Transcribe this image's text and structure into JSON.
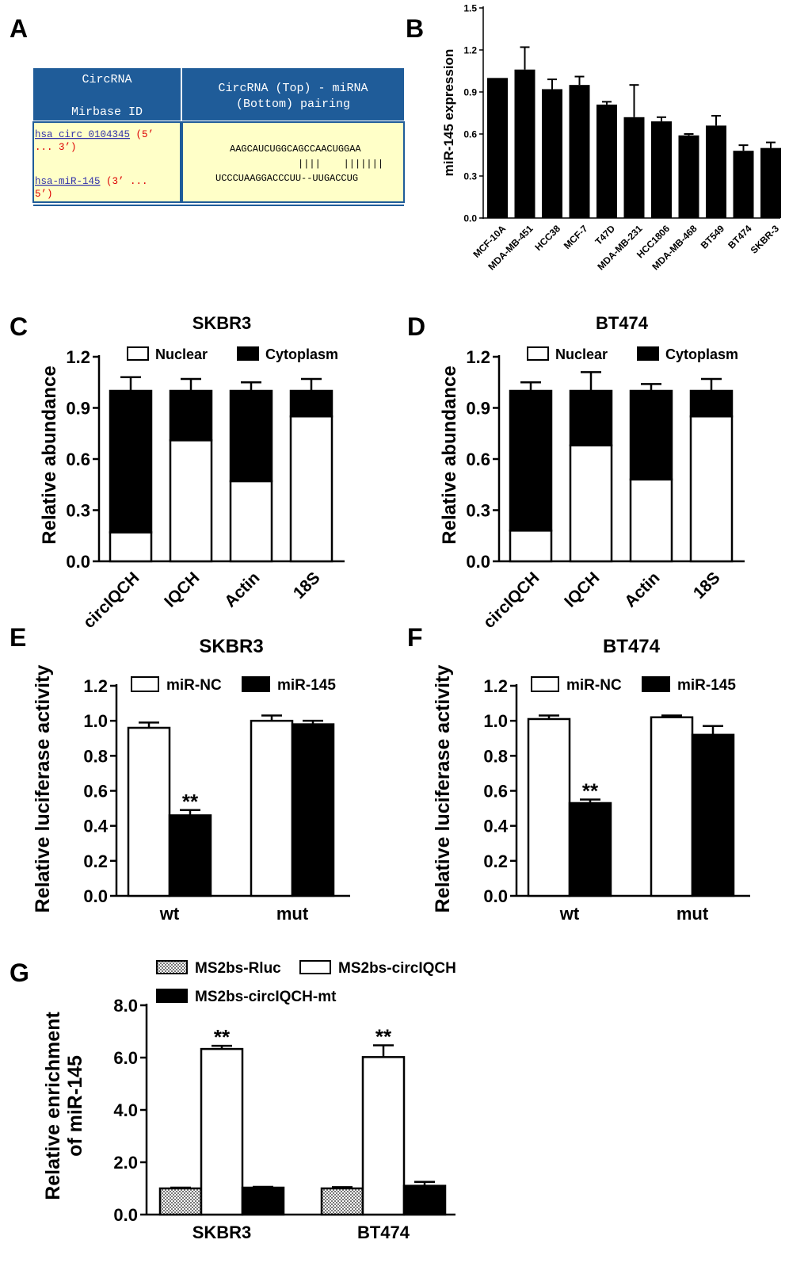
{
  "panel_letters": {
    "A": "A",
    "B": "B",
    "C": "C",
    "D": "D",
    "E": "E",
    "F": "F",
    "G": "G"
  },
  "table_a": {
    "header_left_1": "CircRNA",
    "header_left_2": "Mirbase ID",
    "header_right_1": "CircRNA (Top) - miRNA",
    "header_right_2": "(Bottom) pairing",
    "circ_link": "hsa_circ_0104345",
    "circ_dir_1": " (5’",
    "circ_dir_2": "... 3’)",
    "mir_link": "hsa-miR-145",
    "mir_dir_1": " (3’ ...",
    "mir_dir_2": "5’)",
    "top_seq": "AAGCAUCUGGCAGCCAACUGGAA",
    "pair_marks": "||||    |||||||",
    "bottom_seq": "UCCCUAAGGACCCUU--UUGACCUG",
    "colors": {
      "header_bg": "#1f5c99",
      "cell_bg": "#ffffc8",
      "link": "#3333aa",
      "red_text": "#dd0000"
    }
  },
  "chart_data": [
    {
      "id": "B",
      "type": "bar",
      "title": "",
      "ylabel": "miR-145 expression",
      "xlabel": "",
      "ylim": [
        0,
        1.5
      ],
      "yticks": [
        "0.0",
        "0.3",
        "0.6",
        "0.9",
        "1.2",
        "1.5"
      ],
      "categories": [
        "MCF-10A",
        "MDA-MB-451",
        "HCC38",
        "MCF-7",
        "T47D",
        "MDA-MB-231",
        "HCC1806",
        "MDA-MB-468",
        "BT549",
        "BT474",
        "SKBR-3"
      ],
      "values": [
        1.0,
        1.06,
        0.92,
        0.95,
        0.81,
        0.72,
        0.69,
        0.59,
        0.66,
        0.48,
        0.5
      ],
      "errors": [
        0.0,
        0.16,
        0.07,
        0.06,
        0.02,
        0.23,
        0.03,
        0.01,
        0.07,
        0.04,
        0.04
      ]
    },
    {
      "id": "C",
      "type": "bar",
      "stacked": true,
      "title": "SKBR3",
      "ylabel": "Relative abundance",
      "ylim": [
        0,
        1.2
      ],
      "yticks": [
        "0.0",
        "0.3",
        "0.6",
        "0.9",
        "1.2"
      ],
      "categories": [
        "circIQCH",
        "IQCH",
        "Actin",
        "18S"
      ],
      "series": [
        {
          "name": "Nuclear",
          "values": [
            0.17,
            0.71,
            0.47,
            0.85
          ]
        },
        {
          "name": "Cytoplasm",
          "values": [
            0.83,
            0.29,
            0.53,
            0.15
          ]
        }
      ],
      "total_errors": [
        0.08,
        0.07,
        0.05,
        0.07
      ]
    },
    {
      "id": "D",
      "type": "bar",
      "stacked": true,
      "title": "BT474",
      "ylabel": "Relative abundance",
      "ylim": [
        0,
        1.2
      ],
      "yticks": [
        "0.0",
        "0.3",
        "0.6",
        "0.9",
        "1.2"
      ],
      "categories": [
        "circIQCH",
        "IQCH",
        "Actin",
        "18S"
      ],
      "series": [
        {
          "name": "Nuclear",
          "values": [
            0.18,
            0.68,
            0.48,
            0.85
          ]
        },
        {
          "name": "Cytoplasm",
          "values": [
            0.82,
            0.32,
            0.52,
            0.15
          ]
        }
      ],
      "total_errors": [
        0.05,
        0.11,
        0.04,
        0.07
      ]
    },
    {
      "id": "E",
      "type": "bar",
      "title": "SKBR3",
      "ylabel": "Relative luciferase activity",
      "ylim": [
        0,
        1.2
      ],
      "yticks": [
        "0.0",
        "0.2",
        "0.4",
        "0.6",
        "0.8",
        "1.0",
        "1.2"
      ],
      "categories": [
        "wt",
        "mut"
      ],
      "series": [
        {
          "name": "miR-NC",
          "values": [
            0.96,
            1.0
          ],
          "errors": [
            0.03,
            0.03
          ]
        },
        {
          "name": "miR-145",
          "values": [
            0.46,
            0.98
          ],
          "errors": [
            0.03,
            0.02
          ]
        }
      ],
      "annotations": [
        {
          "category": "wt",
          "series": "miR-145",
          "text": "**"
        }
      ]
    },
    {
      "id": "F",
      "type": "bar",
      "title": "BT474",
      "ylabel": "Relative luciferase activity",
      "ylim": [
        0,
        1.2
      ],
      "yticks": [
        "0.0",
        "0.2",
        "0.4",
        "0.6",
        "0.8",
        "1.0",
        "1.2"
      ],
      "categories": [
        "wt",
        "mut"
      ],
      "series": [
        {
          "name": "miR-NC",
          "values": [
            1.01,
            1.02
          ],
          "errors": [
            0.02,
            0.01
          ]
        },
        {
          "name": "miR-145",
          "values": [
            0.53,
            0.92
          ],
          "errors": [
            0.02,
            0.05
          ]
        }
      ],
      "annotations": [
        {
          "category": "wt",
          "series": "miR-145",
          "text": "**"
        }
      ]
    },
    {
      "id": "G",
      "type": "bar",
      "title": "",
      "ylabel": [
        "Relative enrichment",
        "of miR-145"
      ],
      "ylim": [
        0,
        8.0
      ],
      "yticks": [
        "0.0",
        "2.0",
        "4.0",
        "6.0",
        "8.0"
      ],
      "categories": [
        "SKBR3",
        "BT474"
      ],
      "series": [
        {
          "name": "MS2bs-Rluc",
          "values": [
            1.0,
            1.0
          ],
          "errors": [
            0.03,
            0.05
          ]
        },
        {
          "name": "MS2bs-circIQCH",
          "values": [
            6.33,
            6.02
          ],
          "errors": [
            0.12,
            0.45
          ]
        },
        {
          "name": "MS2bs-circIQCH-mt",
          "values": [
            1.03,
            1.1
          ],
          "errors": [
            0.03,
            0.15
          ]
        }
      ],
      "annotations": [
        {
          "category": "SKBR3",
          "series": "MS2bs-circIQCH",
          "text": "**"
        },
        {
          "category": "BT474",
          "series": "MS2bs-circIQCH",
          "text": "**"
        }
      ]
    }
  ]
}
